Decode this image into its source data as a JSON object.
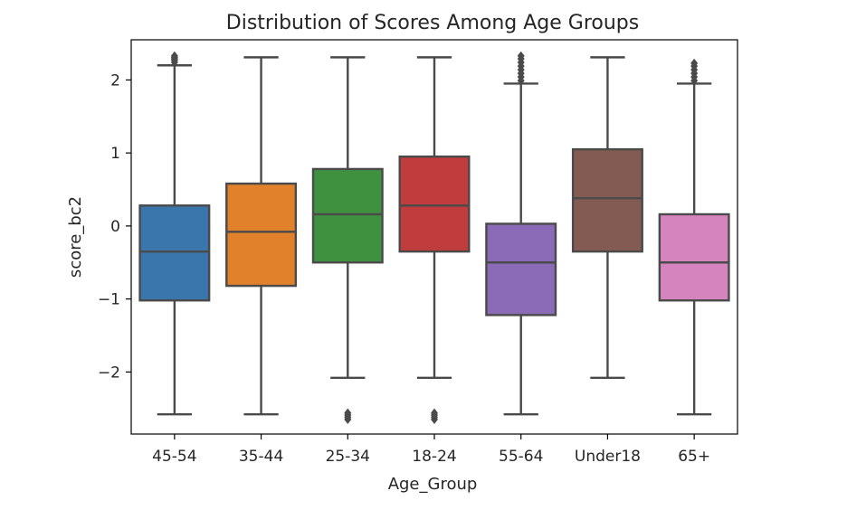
{
  "chart_data": {
    "type": "box",
    "title": "Distribution of Scores Among Age Groups",
    "xlabel": "Age_Group",
    "ylabel": "score_bc2",
    "ylim": [
      -2.85,
      2.55
    ],
    "yticks": [
      {
        "value": 2,
        "label": "2"
      },
      {
        "value": 1,
        "label": "1"
      },
      {
        "value": 0,
        "label": "0"
      },
      {
        "value": -1,
        "label": "−1"
      },
      {
        "value": -2,
        "label": "−2"
      }
    ],
    "grid": false,
    "legend": "none",
    "categories": [
      "45-54",
      "35-44",
      "25-34",
      "18-24",
      "55-64",
      "Under18",
      "65+"
    ],
    "boxes": [
      {
        "category": "45-54",
        "q1": -1.02,
        "median": -0.35,
        "q3": 0.28,
        "whisker_low": -2.58,
        "whisker_high": 2.2,
        "outliers": [
          2.24,
          2.27,
          2.29,
          2.31,
          2.33
        ],
        "color": "#3a75ab"
      },
      {
        "category": "35-44",
        "q1": -0.82,
        "median": -0.08,
        "q3": 0.58,
        "whisker_low": -2.58,
        "whisker_high": 2.31,
        "outliers": [],
        "color": "#e1812b"
      },
      {
        "category": "25-34",
        "q1": -0.5,
        "median": 0.16,
        "q3": 0.78,
        "whisker_low": -2.08,
        "whisker_high": 2.31,
        "outliers": [
          -2.56,
          -2.59,
          -2.62,
          -2.65
        ],
        "color": "#3f913f"
      },
      {
        "category": "18-24",
        "q1": -0.35,
        "median": 0.28,
        "q3": 0.95,
        "whisker_low": -2.08,
        "whisker_high": 2.31,
        "outliers": [
          -2.56,
          -2.59,
          -2.62,
          -2.65
        ],
        "color": "#c03c3d"
      },
      {
        "category": "55-64",
        "q1": -1.22,
        "median": -0.5,
        "q3": 0.03,
        "whisker_low": -2.58,
        "whisker_high": 1.95,
        "outliers": [
          1.99,
          2.04,
          2.09,
          2.14,
          2.19,
          2.24,
          2.29,
          2.33
        ],
        "color": "#8b6bb7"
      },
      {
        "category": "Under18",
        "q1": -0.35,
        "median": 0.38,
        "q3": 1.05,
        "whisker_low": -2.08,
        "whisker_high": 2.31,
        "outliers": [],
        "color": "#845b53"
      },
      {
        "category": "65+",
        "q1": -1.02,
        "median": -0.5,
        "q3": 0.16,
        "whisker_low": -2.58,
        "whisker_high": 1.95,
        "outliers": [
          1.99,
          2.04,
          2.09,
          2.14,
          2.19,
          2.23
        ],
        "color": "#d684bd"
      }
    ]
  }
}
